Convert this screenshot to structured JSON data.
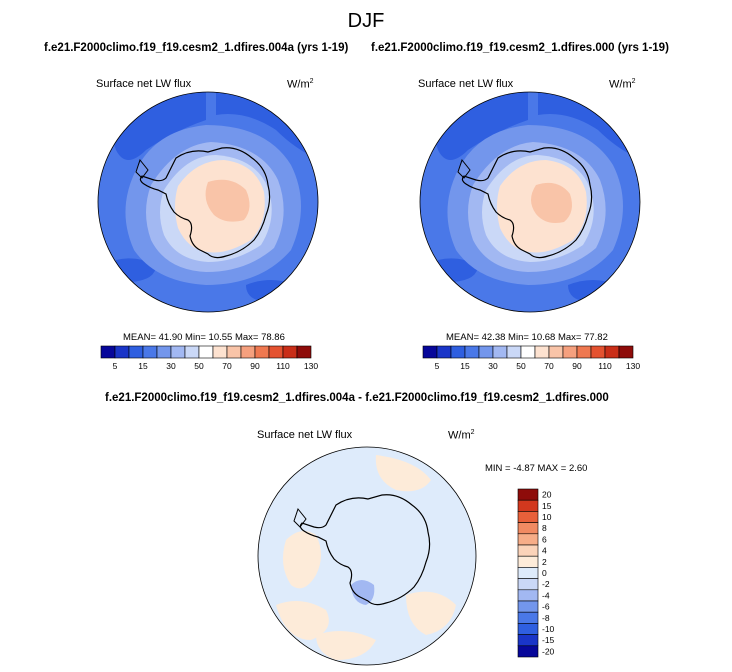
{
  "figure": {
    "title": "DJF"
  },
  "panels": [
    {
      "case_title": "f.e21.F2000climo.f19_f19.cesm2_1.dfires.004a (yrs 1-19)",
      "variable": "Surface net LW flux",
      "units_base": "W/m",
      "units_exp": "2",
      "stats": "MEAN= 41.90  Min= 10.55  Max= 78.86"
    },
    {
      "case_title": "f.e21.F2000climo.f19_f19.cesm2_1.dfires.000 (yrs 1-19)",
      "variable": "Surface net LW flux",
      "units_base": "W/m",
      "units_exp": "2",
      "stats": "MEAN= 42.38  Min= 10.68  Max= 77.82"
    },
    {
      "case_title": "f.e21.F2000climo.f19_f19.cesm2_1.dfires.004a - f.e21.F2000climo.f19_f19.cesm2_1.dfires.000",
      "variable": "Surface net LW flux",
      "units_base": "W/m",
      "units_exp": "2",
      "stats": "MIN = -4.87 MAX =  2.60"
    }
  ],
  "colorbar_field": {
    "colors": [
      "#07079a",
      "#1a35c8",
      "#2f5fe0",
      "#4a78e8",
      "#7396ec",
      "#a2b8f2",
      "#cad8f7",
      "#ffffff",
      "#fde2d0",
      "#f9c4a8",
      "#f5a07e",
      "#ef7850",
      "#e45230",
      "#c92e18",
      "#8e0c0a"
    ],
    "tick_labels": [
      "5",
      "15",
      "30",
      "50",
      "70",
      "90",
      "110",
      "130"
    ]
  },
  "colorbar_diff": {
    "colors": [
      "#07079a",
      "#1a35c8",
      "#2f5fe0",
      "#4a78e8",
      "#7396ec",
      "#a2b8f2",
      "#cad8f7",
      "#deebfb",
      "#fdebd9",
      "#fbd3b9",
      "#f7ad88",
      "#f18a62",
      "#e8603a",
      "#d2381e",
      "#8e0c0a"
    ],
    "tick_labels": [
      "20",
      "15",
      "10",
      "8",
      "6",
      "4",
      "2",
      "0",
      "-2",
      "-4",
      "-6",
      "-8",
      "-10",
      "-15",
      "-20"
    ]
  }
}
